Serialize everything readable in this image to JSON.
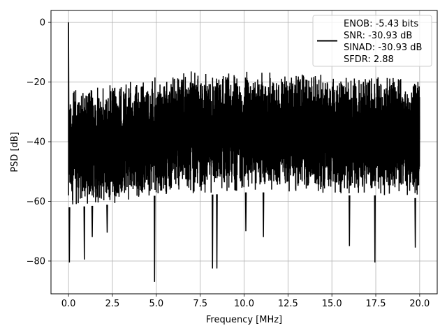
{
  "chart_data": {
    "type": "line",
    "xlabel": "Frequency [MHz]",
    "ylabel": "PSD [dB]",
    "xlim": [
      -1.0,
      21.0
    ],
    "ylim": [
      -91.0,
      4.0
    ],
    "xticks": [
      0.0,
      2.5,
      5.0,
      7.5,
      10.0,
      12.5,
      15.0,
      17.5,
      20.0
    ],
    "xtick_labels": [
      "0.0",
      "2.5",
      "5.0",
      "7.5",
      "10.0",
      "12.5",
      "15.0",
      "17.5",
      "20.0"
    ],
    "yticks": [
      0,
      -20,
      -40,
      -60,
      -80
    ],
    "ytick_labels": [
      "0",
      "−20",
      "−40",
      "−60",
      "−80"
    ],
    "grid": true,
    "legend_position": "top-right",
    "series": [
      {
        "name": "ENOB: -5.43 bits\nSNR: -30.93 dB\nSINAD: -30.93 dB\nSFDR: 2.88",
        "color": "#000000",
        "x_range": [
          0.0,
          20.0
        ],
        "peak": {
          "x": 0.0,
          "y": 0.0
        },
        "upper_envelope": {
          "x": [
            0.2,
            2.5,
            5.0,
            7.5,
            10.0,
            12.5,
            15.0,
            17.5,
            20.0
          ],
          "y": [
            -21.5,
            -20.5,
            -17.5,
            -16.0,
            -16.0,
            -16.5,
            -17.5,
            -17.5,
            -18.5
          ]
        },
        "lower_envelope": {
          "x": [
            0.2,
            2.5,
            5.0,
            7.5,
            10.0,
            12.5,
            15.0,
            17.5,
            20.0
          ],
          "y": [
            -62,
            -61,
            -58,
            -58,
            -57,
            -57,
            -58,
            -58,
            -59
          ]
        },
        "dips": {
          "x": [
            0.05,
            0.9,
            1.35,
            2.2,
            4.9,
            8.2,
            8.45,
            10.1,
            11.1,
            16.0,
            17.45,
            19.75
          ],
          "y": [
            -80.5,
            -79.5,
            -72,
            -70.5,
            -87,
            -82.5,
            -82.5,
            -70,
            -72,
            -75,
            -80.5,
            -75.5
          ]
        }
      }
    ]
  }
}
